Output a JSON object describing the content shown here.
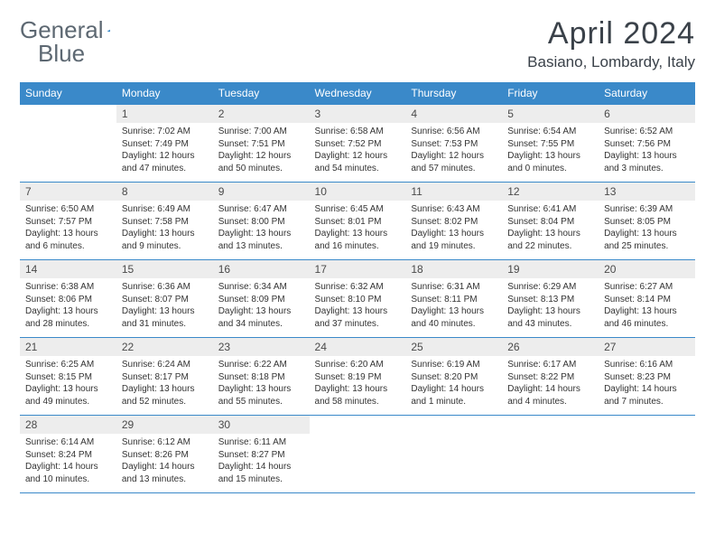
{
  "brand": {
    "text1": "General",
    "text2": "Blue",
    "color_text": "#5d6872",
    "color_accent": "#3a89c9"
  },
  "title": "April 2024",
  "location": "Basiano, Lombardy, Italy",
  "colors": {
    "header_bg": "#3a89c9",
    "header_fg": "#ffffff",
    "daynum_bg": "#ededed",
    "border": "#3a89c9",
    "body_text": "#333333",
    "title_color": "#3a4149"
  },
  "day_headers": [
    "Sunday",
    "Monday",
    "Tuesday",
    "Wednesday",
    "Thursday",
    "Friday",
    "Saturday"
  ],
  "weeks": [
    [
      {
        "n": "",
        "sr": "",
        "ss": "",
        "dl": ""
      },
      {
        "n": "1",
        "sr": "Sunrise: 7:02 AM",
        "ss": "Sunset: 7:49 PM",
        "dl": "Daylight: 12 hours and 47 minutes."
      },
      {
        "n": "2",
        "sr": "Sunrise: 7:00 AM",
        "ss": "Sunset: 7:51 PM",
        "dl": "Daylight: 12 hours and 50 minutes."
      },
      {
        "n": "3",
        "sr": "Sunrise: 6:58 AM",
        "ss": "Sunset: 7:52 PM",
        "dl": "Daylight: 12 hours and 54 minutes."
      },
      {
        "n": "4",
        "sr": "Sunrise: 6:56 AM",
        "ss": "Sunset: 7:53 PM",
        "dl": "Daylight: 12 hours and 57 minutes."
      },
      {
        "n": "5",
        "sr": "Sunrise: 6:54 AM",
        "ss": "Sunset: 7:55 PM",
        "dl": "Daylight: 13 hours and 0 minutes."
      },
      {
        "n": "6",
        "sr": "Sunrise: 6:52 AM",
        "ss": "Sunset: 7:56 PM",
        "dl": "Daylight: 13 hours and 3 minutes."
      }
    ],
    [
      {
        "n": "7",
        "sr": "Sunrise: 6:50 AM",
        "ss": "Sunset: 7:57 PM",
        "dl": "Daylight: 13 hours and 6 minutes."
      },
      {
        "n": "8",
        "sr": "Sunrise: 6:49 AM",
        "ss": "Sunset: 7:58 PM",
        "dl": "Daylight: 13 hours and 9 minutes."
      },
      {
        "n": "9",
        "sr": "Sunrise: 6:47 AM",
        "ss": "Sunset: 8:00 PM",
        "dl": "Daylight: 13 hours and 13 minutes."
      },
      {
        "n": "10",
        "sr": "Sunrise: 6:45 AM",
        "ss": "Sunset: 8:01 PM",
        "dl": "Daylight: 13 hours and 16 minutes."
      },
      {
        "n": "11",
        "sr": "Sunrise: 6:43 AM",
        "ss": "Sunset: 8:02 PM",
        "dl": "Daylight: 13 hours and 19 minutes."
      },
      {
        "n": "12",
        "sr": "Sunrise: 6:41 AM",
        "ss": "Sunset: 8:04 PM",
        "dl": "Daylight: 13 hours and 22 minutes."
      },
      {
        "n": "13",
        "sr": "Sunrise: 6:39 AM",
        "ss": "Sunset: 8:05 PM",
        "dl": "Daylight: 13 hours and 25 minutes."
      }
    ],
    [
      {
        "n": "14",
        "sr": "Sunrise: 6:38 AM",
        "ss": "Sunset: 8:06 PM",
        "dl": "Daylight: 13 hours and 28 minutes."
      },
      {
        "n": "15",
        "sr": "Sunrise: 6:36 AM",
        "ss": "Sunset: 8:07 PM",
        "dl": "Daylight: 13 hours and 31 minutes."
      },
      {
        "n": "16",
        "sr": "Sunrise: 6:34 AM",
        "ss": "Sunset: 8:09 PM",
        "dl": "Daylight: 13 hours and 34 minutes."
      },
      {
        "n": "17",
        "sr": "Sunrise: 6:32 AM",
        "ss": "Sunset: 8:10 PM",
        "dl": "Daylight: 13 hours and 37 minutes."
      },
      {
        "n": "18",
        "sr": "Sunrise: 6:31 AM",
        "ss": "Sunset: 8:11 PM",
        "dl": "Daylight: 13 hours and 40 minutes."
      },
      {
        "n": "19",
        "sr": "Sunrise: 6:29 AM",
        "ss": "Sunset: 8:13 PM",
        "dl": "Daylight: 13 hours and 43 minutes."
      },
      {
        "n": "20",
        "sr": "Sunrise: 6:27 AM",
        "ss": "Sunset: 8:14 PM",
        "dl": "Daylight: 13 hours and 46 minutes."
      }
    ],
    [
      {
        "n": "21",
        "sr": "Sunrise: 6:25 AM",
        "ss": "Sunset: 8:15 PM",
        "dl": "Daylight: 13 hours and 49 minutes."
      },
      {
        "n": "22",
        "sr": "Sunrise: 6:24 AM",
        "ss": "Sunset: 8:17 PM",
        "dl": "Daylight: 13 hours and 52 minutes."
      },
      {
        "n": "23",
        "sr": "Sunrise: 6:22 AM",
        "ss": "Sunset: 8:18 PM",
        "dl": "Daylight: 13 hours and 55 minutes."
      },
      {
        "n": "24",
        "sr": "Sunrise: 6:20 AM",
        "ss": "Sunset: 8:19 PM",
        "dl": "Daylight: 13 hours and 58 minutes."
      },
      {
        "n": "25",
        "sr": "Sunrise: 6:19 AM",
        "ss": "Sunset: 8:20 PM",
        "dl": "Daylight: 14 hours and 1 minute."
      },
      {
        "n": "26",
        "sr": "Sunrise: 6:17 AM",
        "ss": "Sunset: 8:22 PM",
        "dl": "Daylight: 14 hours and 4 minutes."
      },
      {
        "n": "27",
        "sr": "Sunrise: 6:16 AM",
        "ss": "Sunset: 8:23 PM",
        "dl": "Daylight: 14 hours and 7 minutes."
      }
    ],
    [
      {
        "n": "28",
        "sr": "Sunrise: 6:14 AM",
        "ss": "Sunset: 8:24 PM",
        "dl": "Daylight: 14 hours and 10 minutes."
      },
      {
        "n": "29",
        "sr": "Sunrise: 6:12 AM",
        "ss": "Sunset: 8:26 PM",
        "dl": "Daylight: 14 hours and 13 minutes."
      },
      {
        "n": "30",
        "sr": "Sunrise: 6:11 AM",
        "ss": "Sunset: 8:27 PM",
        "dl": "Daylight: 14 hours and 15 minutes."
      },
      {
        "n": "",
        "sr": "",
        "ss": "",
        "dl": ""
      },
      {
        "n": "",
        "sr": "",
        "ss": "",
        "dl": ""
      },
      {
        "n": "",
        "sr": "",
        "ss": "",
        "dl": ""
      },
      {
        "n": "",
        "sr": "",
        "ss": "",
        "dl": ""
      }
    ]
  ]
}
